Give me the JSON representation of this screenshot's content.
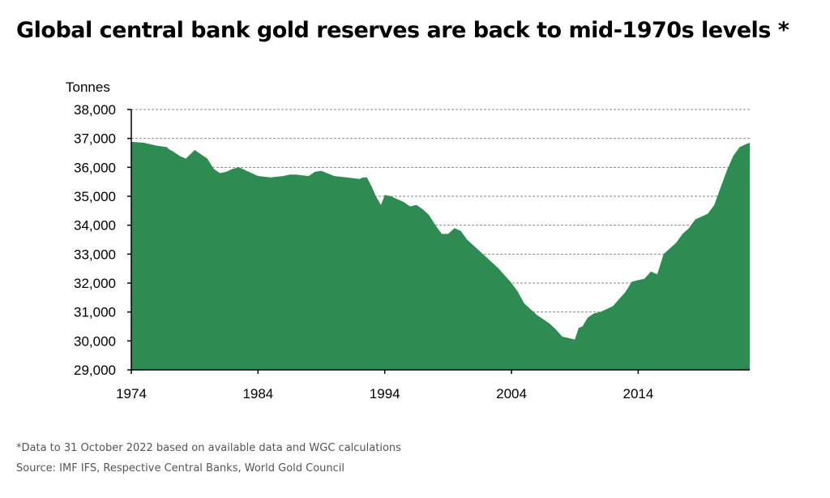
{
  "title": "Global central bank gold reserves are back to mid-1970s levels *",
  "footnote": "*Data to 31 October 2022 based on available data and WGC calculations",
  "source": "Source: IMF IFS, Respective Central Banks, World Gold Council",
  "colors": {
    "area": "#2e8b52",
    "grid": "#8a8a8a",
    "axis": "#000000"
  },
  "chart_data": {
    "type": "area",
    "title": "Global central bank gold reserves are back to mid-1970s levels *",
    "ylabel": "Tonnes",
    "xlabel": "",
    "xlim": [
      1974,
      2022.8
    ],
    "ylim": [
      29000,
      38000
    ],
    "grid": "horizontal dashed",
    "x_ticks": [
      "1974",
      "1984",
      "1994",
      "2004",
      "2014"
    ],
    "x_tick_values": [
      1974,
      1984,
      1994,
      2004,
      2014
    ],
    "y_ticks": [
      "29,000",
      "30,000",
      "31,000",
      "32,000",
      "33,000",
      "34,000",
      "35,000",
      "36,000",
      "37,000",
      "38,000"
    ],
    "y_tick_values": [
      29000,
      30000,
      31000,
      32000,
      33000,
      34000,
      35000,
      36000,
      37000,
      38000
    ],
    "series": [
      {
        "x": [
          1974.0,
          1975.0,
          1976.0,
          1976.8,
          1977.0,
          1977.3,
          1977.8,
          1978.3,
          1979.0,
          1979.4,
          1980.0,
          1980.5,
          1981.0,
          1981.5,
          1982.0,
          1982.5,
          1983.0,
          1984.0,
          1985.0,
          1986.0,
          1986.5,
          1987.0,
          1987.5,
          1988.0,
          1988.5,
          1989.0,
          1990.0,
          1991.0,
          1992.0,
          1992.3,
          1992.6,
          1993.0,
          1993.3,
          1993.7,
          1994.0,
          1994.5,
          1995.0,
          1995.5,
          1996.0,
          1996.5,
          1997.0,
          1997.5,
          1998.0,
          1998.5,
          1999.0,
          1999.5,
          2000.0,
          2000.5,
          2001.0,
          2002.0,
          2003.0,
          2004.0,
          2004.5,
          2005.0,
          2006.0,
          2007.0,
          2007.5,
          2008.0,
          2008.5,
          2009.0,
          2009.3,
          2009.6,
          2010.0,
          2010.5,
          2011.0,
          2012.0,
          2013.0,
          2013.5,
          2014.0,
          2014.5,
          2015.0,
          2015.5,
          2016.0,
          2016.5,
          2017.0,
          2017.5,
          2018.0,
          2018.5,
          2019.0,
          2019.5,
          2020.0,
          2020.5,
          2021.0,
          2021.5,
          2022.0,
          2022.5,
          2022.8
        ],
        "values": [
          36880,
          36850,
          36750,
          36700,
          36620,
          36550,
          36400,
          36300,
          36600,
          36480,
          36300,
          35950,
          35800,
          35850,
          35950,
          36000,
          35900,
          35700,
          35650,
          35700,
          35750,
          35750,
          35720,
          35700,
          35850,
          35880,
          35700,
          35650,
          35600,
          35650,
          35650,
          35300,
          35000,
          34700,
          35050,
          35000,
          34900,
          34800,
          34650,
          34700,
          34550,
          34350,
          34000,
          33700,
          33700,
          33900,
          33800,
          33500,
          33300,
          32900,
          32500,
          32000,
          31700,
          31300,
          30900,
          30600,
          30400,
          30150,
          30100,
          30050,
          30450,
          30500,
          30800,
          30950,
          31000,
          31200,
          31700,
          32050,
          32100,
          32150,
          32400,
          32300,
          33000,
          33200,
          33400,
          33700,
          33900,
          34200,
          34300,
          34400,
          34700,
          35300,
          35900,
          36400,
          36700,
          36800,
          36850
        ]
      }
    ]
  }
}
